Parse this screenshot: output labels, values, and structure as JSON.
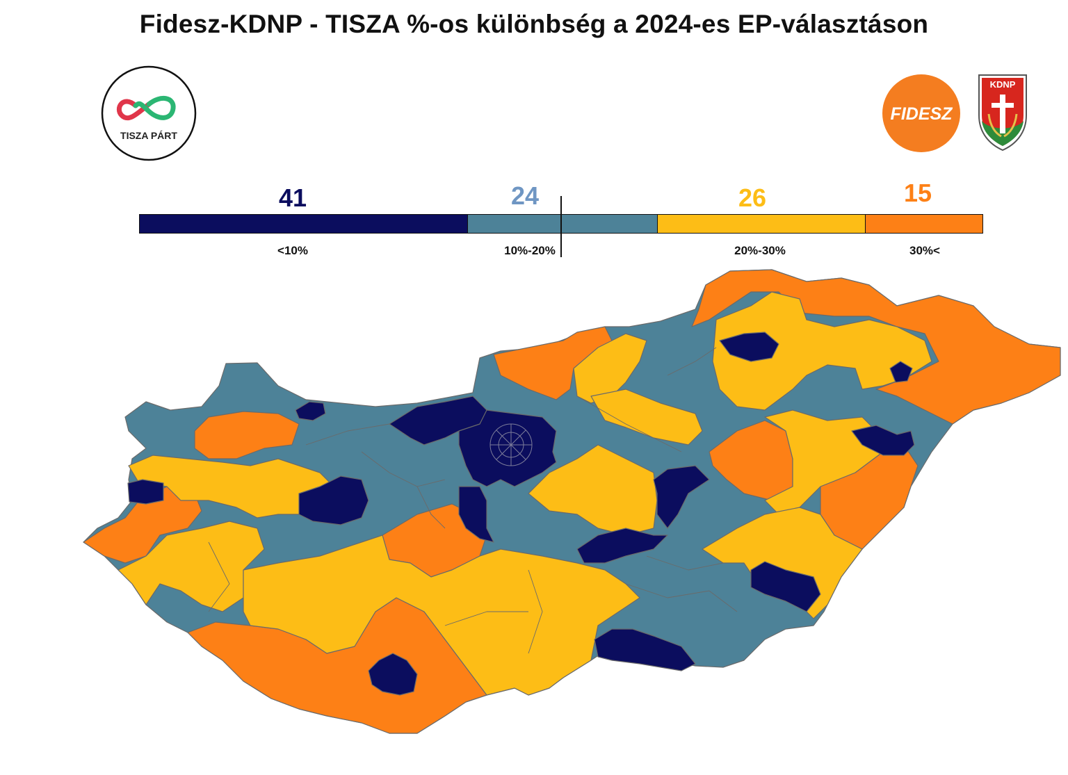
{
  "title": "Fidesz-KDNP - TISZA %-os különbség a 2024-es EP-választáson",
  "logos": {
    "tisza": "TISZA PÁRT",
    "fidesz": "FIDESZ",
    "kdnp": "KDNP"
  },
  "colors": {
    "lt10": "#0b0d5e",
    "10to20": "#4d8298",
    "20to30": "#fdbd16",
    "gt30": "#fd8016",
    "boundary": "#6a6a6a"
  },
  "legend": [
    {
      "count": "41",
      "range": "<10%",
      "color": "#0b0d5e"
    },
    {
      "count": "24",
      "range": "10%-20%",
      "color": "#4d8298"
    },
    {
      "count": "26",
      "range": "20%-30%",
      "color": "#fdbd16"
    },
    {
      "count": "15",
      "range": "30%<",
      "color": "#fd8016"
    }
  ],
  "map": {
    "country": "Hungary",
    "unit": "electoral districts",
    "category_counts": {
      "<10%": 41,
      "10%-20%": 24,
      "20%-30%": 26,
      "30%<": 15
    }
  }
}
